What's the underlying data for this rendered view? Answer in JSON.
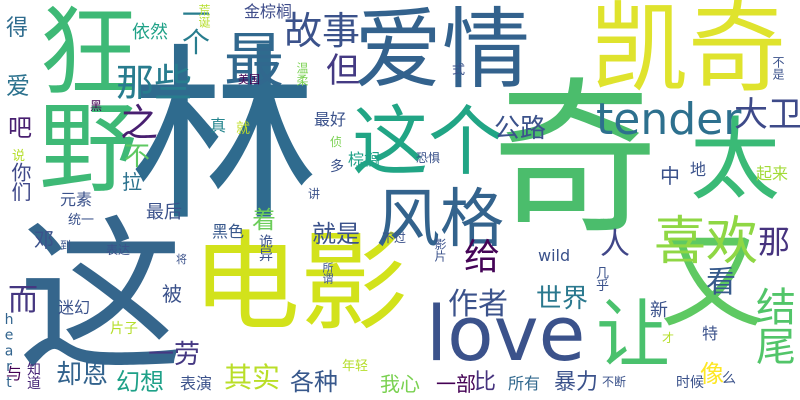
{
  "words": [
    {
      "text": "林",
      "color": "#2f6b8e"
    },
    {
      "text": "奇",
      "color": "#4bbd6c"
    },
    {
      "text": "这",
      "color": "#35668c"
    },
    {
      "text": "爱情",
      "color": "#33628d"
    },
    {
      "text": "凯奇",
      "color": "#dfe32d"
    },
    {
      "text": "电影",
      "color": "#d2e21b"
    },
    {
      "text": "狂野",
      "color": "#3eb976"
    },
    {
      "text": "love",
      "color": "#3b528b"
    },
    {
      "text": "又",
      "color": "#5ec962"
    },
    {
      "text": "太",
      "color": "#3aba76"
    },
    {
      "text": "这个",
      "color": "#21a585"
    },
    {
      "text": "风格",
      "color": "#33638d"
    },
    {
      "text": "喜欢",
      "color": "#8fd744"
    },
    {
      "text": "让",
      "color": "#4ac16d"
    },
    {
      "text": "最",
      "color": "#31688e"
    },
    {
      "text": "tender",
      "color": "#2d708e"
    },
    {
      "text": "故事",
      "color": "#3b528b"
    },
    {
      "text": "那些",
      "color": "#287c8e"
    },
    {
      "text": "大卫",
      "color": "#3e4a89"
    },
    {
      "text": "之",
      "color": "#481f70"
    },
    {
      "text": "但",
      "color": "#443a83"
    },
    {
      "text": "公路",
      "color": "#3b528b"
    },
    {
      "text": "结尾",
      "color": "#52c569"
    },
    {
      "text": "那",
      "color": "#46337e"
    },
    {
      "text": "给",
      "color": "#450457"
    },
    {
      "text": "人",
      "color": "#404688"
    },
    {
      "text": "作者",
      "color": "#3b528b"
    },
    {
      "text": "世界",
      "color": "#2a788e"
    },
    {
      "text": "看",
      "color": "#375a8c"
    },
    {
      "text": "就是",
      "color": "#3b528b"
    },
    {
      "text": "其实",
      "color": "#bade28"
    },
    {
      "text": "幻想",
      "color": "#1fa188"
    },
    {
      "text": "却恩",
      "color": "#33638d"
    },
    {
      "text": "一劳",
      "color": "#453882"
    },
    {
      "text": "各种",
      "color": "#38588c"
    },
    {
      "text": "我心",
      "color": "#7ad151"
    },
    {
      "text": "一部",
      "color": "#440154"
    },
    {
      "text": "暴力",
      "color": "#3b528b"
    },
    {
      "text": "像",
      "color": "#fde725"
    },
    {
      "text": "比",
      "color": "#46337e"
    },
    {
      "text": "所有",
      "color": "#31688e"
    },
    {
      "text": "最后",
      "color": "#3b528b"
    },
    {
      "text": "着",
      "color": "#6ccd5a"
    },
    {
      "text": "被",
      "color": "#3b528b"
    },
    {
      "text": "拉",
      "color": "#2c728e"
    },
    {
      "text": "不",
      "color": "#5ec962"
    },
    {
      "text": "而",
      "color": "#453781"
    },
    {
      "text": "爱",
      "color": "#2c728e"
    },
    {
      "text": "得",
      "color": "#2f6c8e"
    },
    {
      "text": "吧",
      "color": "#481f70"
    },
    {
      "text": "你们",
      "color": "#3f4889"
    },
    {
      "text": "邓",
      "color": "#3b528b"
    },
    {
      "text": "元素",
      "color": "#3b528b"
    },
    {
      "text": "一个",
      "color": "#287d8e"
    },
    {
      "text": "依然",
      "color": "#1fa187"
    },
    {
      "text": "金棕榈",
      "color": "#3e4c8a"
    },
    {
      "text": "最好",
      "color": "#3b528b"
    },
    {
      "text": "真",
      "color": "#25858e"
    },
    {
      "text": "黑色",
      "color": "#38588c"
    },
    {
      "text": "中",
      "color": "#3b528b"
    },
    {
      "text": "地",
      "color": "#3b528b"
    },
    {
      "text": "起来",
      "color": "#a2da37"
    },
    {
      "text": "新",
      "color": "#3b528b"
    },
    {
      "text": "特",
      "color": "#3b528b"
    },
    {
      "text": "么",
      "color": "#3b528b"
    },
    {
      "text": "棕榈",
      "color": "#1fa187"
    },
    {
      "text": "wild",
      "color": "#3b528b"
    },
    {
      "text": "heart",
      "color": "#32648e"
    },
    {
      "text": "与",
      "color": "#440154"
    },
    {
      "text": "知道",
      "color": "#482677"
    },
    {
      "text": "迷幻",
      "color": "#3b528b"
    },
    {
      "text": "表演",
      "color": "#3b528b"
    },
    {
      "text": "年轻",
      "color": "#b5de2b"
    },
    {
      "text": "时候",
      "color": "#3b528b"
    },
    {
      "text": "不断",
      "color": "#3b528b"
    },
    {
      "text": "才",
      "color": "#b5de2b"
    },
    {
      "text": "几乎",
      "color": "#3b528b"
    },
    {
      "text": "影片",
      "color": "#3b528b"
    },
    {
      "text": "诡异",
      "color": "#3b528b"
    },
    {
      "text": "恐惧",
      "color": "#3b528b"
    },
    {
      "text": "讲",
      "color": "#3b528b"
    },
    {
      "text": "多",
      "color": "#3b528b"
    },
    {
      "text": "不过",
      "color": "#3b528b"
    },
    {
      "text": "表达",
      "color": "#3b528b"
    },
    {
      "text": "到",
      "color": "#3b528b"
    },
    {
      "text": "将",
      "color": "#3b528b"
    },
    {
      "text": "统一",
      "color": "#3b528b"
    },
    {
      "text": "说",
      "color": "#b5de2b"
    },
    {
      "text": "片子",
      "color": "#b5de2b"
    },
    {
      "text": "侦",
      "color": "#7ad151"
    },
    {
      "text": "就",
      "color": "#c2df23"
    },
    {
      "text": "黑",
      "color": "#440154"
    },
    {
      "text": "美国",
      "color": "#440154"
    },
    {
      "text": "温柔",
      "color": "#7ad151"
    },
    {
      "text": "荒诞",
      "color": "#b5de2b"
    },
    {
      "text": "式",
      "color": "#3b528b"
    },
    {
      "text": "不是",
      "color": "#3b528b"
    },
    {
      "text": "所谓",
      "color": "#3b528b"
    }
  ]
}
